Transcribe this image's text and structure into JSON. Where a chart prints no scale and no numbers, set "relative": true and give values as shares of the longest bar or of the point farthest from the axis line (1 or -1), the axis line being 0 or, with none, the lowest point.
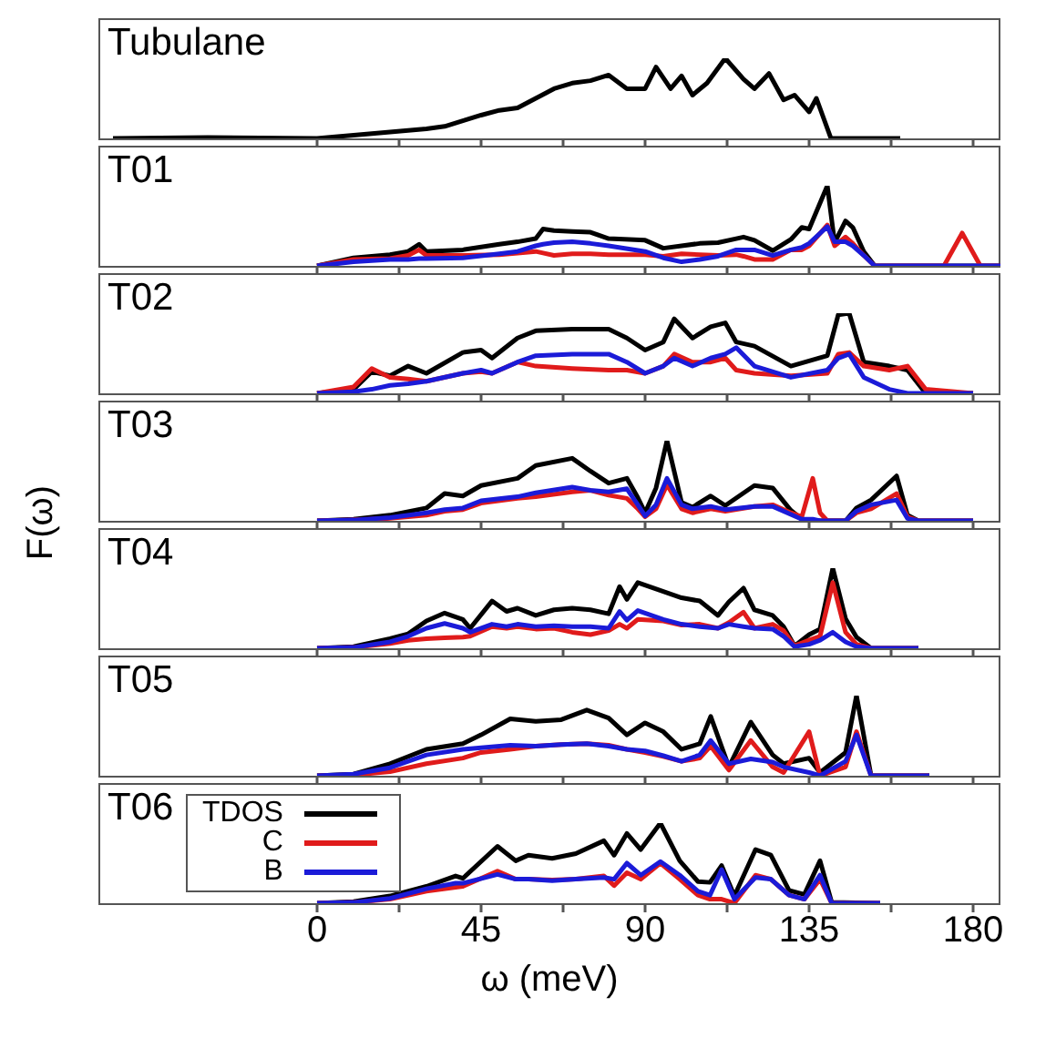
{
  "chart_data": [
    {
      "type": "line",
      "title": "Tubulane",
      "relative": true,
      "tick_labels": false,
      "xlim": [
        -60,
        187.5
      ],
      "xticks": [
        0,
        {
          "value": 22.5,
          "label": null
        },
        45,
        {
          "value": 67.5,
          "label": null
        },
        90,
        {
          "value": 112.5,
          "label": null
        },
        135,
        {
          "value": 157.5,
          "label": null
        },
        180
      ],
      "x": [
        -56,
        -30,
        0,
        10,
        20,
        30,
        35,
        40,
        45,
        50,
        55,
        60,
        65,
        70,
        75,
        80,
        85,
        90,
        93,
        97,
        100,
        103,
        107,
        112,
        117,
        120,
        124,
        128,
        131,
        135,
        137,
        141,
        160
      ],
      "series": [
        {
          "color": "#000000",
          "values": [
            0,
            0.01,
            0,
            0.04,
            0.08,
            0.12,
            0.15,
            0.22,
            0.29,
            0.35,
            0.38,
            0.5,
            0.62,
            0.69,
            0.72,
            0.79,
            0.62,
            0.62,
            0.89,
            0.62,
            0.78,
            0.54,
            0.69,
            1,
            0.74,
            0.62,
            0.81,
            0.48,
            0.54,
            0.33,
            0.5,
            0,
            0
          ]
        }
      ]
    },
    {
      "type": "line",
      "title": "T01",
      "relative": true,
      "tick_labels": false,
      "xlim": [
        -60,
        187.5
      ],
      "xticks": [
        0,
        {
          "value": 22.5,
          "label": null
        },
        45,
        {
          "value": 67.5,
          "label": null
        },
        90,
        {
          "value": 112.5,
          "label": null
        },
        135,
        {
          "value": 157.5,
          "label": null
        },
        180
      ],
      "x": [
        0,
        10,
        20,
        25,
        28,
        30,
        40,
        50,
        55,
        60,
        62,
        65,
        70,
        75,
        80,
        90,
        95,
        100,
        105,
        110,
        115,
        117,
        120,
        125,
        130,
        133,
        135,
        140,
        142,
        145,
        147,
        150,
        153,
        160,
        172,
        177,
        182,
        187.5
      ],
      "series": [
        {
          "color": "#000000",
          "values": [
            0,
            0.1,
            0.14,
            0.18,
            0.27,
            0.18,
            0.2,
            0.27,
            0.3,
            0.34,
            0.46,
            0.44,
            0.43,
            0.42,
            0.34,
            0.32,
            0.22,
            0.25,
            0.28,
            0.29,
            0.34,
            0.36,
            0.32,
            0.19,
            0.33,
            0.48,
            0.46,
            1,
            0.29,
            0.56,
            0.48,
            0.18,
            0,
            0,
            0,
            0,
            0,
            0
          ]
        },
        {
          "color": "#e01b1b",
          "values": [
            0,
            0.08,
            0.09,
            0.13,
            0.2,
            0.13,
            0.13,
            0.14,
            0.16,
            0.18,
            0.16,
            0.13,
            0.15,
            0.15,
            0.14,
            0.14,
            0.12,
            0.15,
            0.14,
            0.13,
            0.14,
            0.12,
            0.08,
            0.08,
            0.2,
            0.2,
            0.25,
            0.51,
            0.25,
            0.36,
            0.28,
            0.13,
            0,
            0,
            0,
            0.41,
            0,
            0
          ]
        },
        {
          "color": "#1b1bd8",
          "values": [
            0,
            0.05,
            0.08,
            0.08,
            0.09,
            0.09,
            0.1,
            0.15,
            0.18,
            0.25,
            0.27,
            0.29,
            0.3,
            0.28,
            0.25,
            0.18,
            0.1,
            0.05,
            0.08,
            0.12,
            0.2,
            0.2,
            0.2,
            0.13,
            0.2,
            0.23,
            0.28,
            0.49,
            0.3,
            0.3,
            0.25,
            0.13,
            0,
            0,
            0,
            0,
            0,
            0
          ]
        }
      ]
    },
    {
      "type": "line",
      "title": "T02",
      "relative": true,
      "tick_labels": false,
      "xlim": [
        -60,
        187.5
      ],
      "xticks": [
        0,
        {
          "value": 22.5,
          "label": null
        },
        45,
        {
          "value": 67.5,
          "label": null
        },
        90,
        {
          "value": 112.5,
          "label": null
        },
        135,
        {
          "value": 157.5,
          "label": null
        },
        180
      ],
      "x": [
        0,
        10,
        15,
        20,
        25,
        30,
        40,
        45,
        48,
        55,
        60,
        70,
        80,
        85,
        90,
        95,
        98,
        103,
        108,
        112,
        115,
        120,
        130,
        140,
        143,
        146,
        150,
        157,
        162,
        167,
        180
      ],
      "series": [
        {
          "color": "#000000",
          "values": [
            0,
            0.05,
            0.27,
            0.22,
            0.34,
            0.25,
            0.51,
            0.54,
            0.44,
            0.69,
            0.78,
            0.8,
            0.8,
            0.69,
            0.54,
            0.64,
            0.93,
            0.69,
            0.83,
            0.88,
            0.64,
            0.59,
            0.34,
            0.47,
            0.98,
            1,
            0.39,
            0.34,
            0.29,
            0,
            0
          ]
        },
        {
          "color": "#e01b1b",
          "values": [
            0,
            0.08,
            0.31,
            0.2,
            0.18,
            0.15,
            0.25,
            0.27,
            0.25,
            0.39,
            0.34,
            0.31,
            0.29,
            0.29,
            0.25,
            0.34,
            0.49,
            0.39,
            0.39,
            0.44,
            0.29,
            0.25,
            0.22,
            0.25,
            0.49,
            0.51,
            0.34,
            0.29,
            0.34,
            0.05,
            0
          ]
        },
        {
          "color": "#1b1bd8",
          "values": [
            0,
            0.02,
            0.05,
            0.1,
            0.12,
            0.15,
            0.25,
            0.29,
            0.25,
            0.39,
            0.47,
            0.49,
            0.49,
            0.39,
            0.25,
            0.34,
            0.44,
            0.34,
            0.44,
            0.49,
            0.57,
            0.34,
            0.2,
            0.29,
            0.44,
            0.49,
            0.2,
            0.05,
            0,
            0,
            0
          ]
        }
      ]
    },
    {
      "type": "line",
      "title": "T03",
      "ylabel": "F(ω)",
      "relative": true,
      "tick_labels": false,
      "xlim": [
        -60,
        187.5
      ],
      "xticks": [
        0,
        {
          "value": 22.5,
          "label": null
        },
        45,
        {
          "value": 67.5,
          "label": null
        },
        90,
        {
          "value": 112.5,
          "label": null
        },
        135,
        {
          "value": 157.5,
          "label": null
        },
        180
      ],
      "x": [
        0,
        10,
        20,
        30,
        35,
        40,
        45,
        55,
        60,
        70,
        75,
        80,
        85,
        88,
        90,
        93,
        96,
        100,
        103,
        108,
        112,
        120,
        125,
        130,
        133,
        136,
        138,
        140,
        145,
        148,
        152,
        159,
        162,
        165,
        180
      ],
      "series": [
        {
          "color": "#000000",
          "values": [
            0,
            0.02,
            0.07,
            0.16,
            0.34,
            0.31,
            0.44,
            0.53,
            0.69,
            0.78,
            0.62,
            0.47,
            0.53,
            0.29,
            0.1,
            0.41,
            1,
            0.23,
            0.17,
            0.31,
            0.19,
            0.44,
            0.41,
            0.13,
            0.02,
            0,
            0,
            0,
            0,
            0.16,
            0.26,
            0.56,
            0.07,
            0,
            0
          ]
        },
        {
          "color": "#e01b1b",
          "values": [
            0,
            0.01,
            0.03,
            0.07,
            0.12,
            0.14,
            0.22,
            0.28,
            0.3,
            0.36,
            0.38,
            0.32,
            0.28,
            0.15,
            0.05,
            0.15,
            0.45,
            0.15,
            0.1,
            0.15,
            0.12,
            0.18,
            0.2,
            0.1,
            0.05,
            0.53,
            0.1,
            0,
            0,
            0.1,
            0.15,
            0.34,
            0.05,
            0,
            0
          ]
        },
        {
          "color": "#1b1bd8",
          "values": [
            0,
            0.01,
            0.04,
            0.1,
            0.14,
            0.16,
            0.25,
            0.3,
            0.35,
            0.42,
            0.38,
            0.36,
            0.4,
            0.2,
            0.06,
            0.2,
            0.53,
            0.2,
            0.15,
            0.18,
            0.14,
            0.18,
            0.18,
            0.08,
            0.02,
            0.02,
            0,
            0,
            0,
            0.12,
            0.2,
            0.26,
            0.03,
            0,
            0
          ]
        }
      ]
    },
    {
      "type": "line",
      "title": "T04",
      "relative": true,
      "tick_labels": false,
      "xlim": [
        -60,
        187.5
      ],
      "xticks": [
        0,
        {
          "value": 22.5,
          "label": null
        },
        45,
        {
          "value": 67.5,
          "label": null
        },
        90,
        {
          "value": 112.5,
          "label": null
        },
        135,
        {
          "value": 157.5,
          "label": null
        },
        180
      ],
      "x": [
        0,
        10,
        20,
        25,
        30,
        35,
        40,
        42,
        48,
        52,
        55,
        60,
        65,
        70,
        75,
        80,
        83,
        85,
        88,
        95,
        100,
        105,
        110,
        113,
        117,
        120,
        125,
        128,
        131,
        135,
        138,
        141.5,
        145,
        148,
        152,
        165
      ],
      "series": [
        {
          "color": "#000000",
          "values": [
            0,
            0.02,
            0.12,
            0.18,
            0.34,
            0.44,
            0.36,
            0.25,
            0.59,
            0.46,
            0.5,
            0.41,
            0.48,
            0.5,
            0.48,
            0.43,
            0.77,
            0.61,
            0.82,
            0.71,
            0.63,
            0.59,
            0.41,
            0.58,
            0.75,
            0.48,
            0.41,
            0.27,
            0.03,
            0.17,
            0.24,
            1,
            0.37,
            0.14,
            0,
            0
          ]
        },
        {
          "color": "#e01b1b",
          "values": [
            0,
            0.01,
            0.06,
            0.1,
            0.12,
            0.13,
            0.14,
            0.15,
            0.27,
            0.25,
            0.27,
            0.24,
            0.25,
            0.2,
            0.17,
            0.22,
            0.3,
            0.25,
            0.36,
            0.34,
            0.29,
            0.3,
            0.25,
            0.32,
            0.45,
            0.25,
            0.3,
            0.22,
            0.03,
            0.1,
            0.15,
            0.82,
            0.2,
            0.05,
            0,
            0
          ]
        },
        {
          "color": "#1b1bd8",
          "values": [
            0,
            0.01,
            0.08,
            0.15,
            0.25,
            0.31,
            0.25,
            0.2,
            0.3,
            0.27,
            0.3,
            0.27,
            0.28,
            0.27,
            0.27,
            0.25,
            0.46,
            0.35,
            0.47,
            0.36,
            0.3,
            0.27,
            0.25,
            0.3,
            0.27,
            0.25,
            0.24,
            0.15,
            0.02,
            0.05,
            0.1,
            0.2,
            0.08,
            0.02,
            0,
            0
          ]
        }
      ]
    },
    {
      "type": "line",
      "title": "T05",
      "relative": true,
      "tick_labels": false,
      "xlim": [
        -60,
        187.5
      ],
      "xticks": [
        0,
        {
          "value": 22.5,
          "label": null
        },
        45,
        {
          "value": 67.5,
          "label": null
        },
        90,
        {
          "value": 112.5,
          "label": null
        },
        135,
        {
          "value": 157.5,
          "label": null
        },
        180
      ],
      "x": [
        0,
        10,
        20,
        30,
        40,
        45,
        53,
        60,
        67,
        74,
        80,
        85,
        90,
        95,
        100,
        105,
        108,
        113,
        119,
        125,
        128,
        135,
        138,
        145,
        148,
        152,
        168
      ],
      "series": [
        {
          "color": "#000000",
          "values": [
            0,
            0.02,
            0.15,
            0.33,
            0.4,
            0.51,
            0.71,
            0.68,
            0.7,
            0.82,
            0.72,
            0.51,
            0.66,
            0.55,
            0.33,
            0.4,
            0.74,
            0.11,
            0.67,
            0.26,
            0.15,
            0.22,
            0.04,
            0.29,
            1,
            0,
            0
          ]
        },
        {
          "color": "#e01b1b",
          "values": [
            0,
            0.01,
            0.05,
            0.15,
            0.22,
            0.29,
            0.33,
            0.37,
            0.39,
            0.4,
            0.38,
            0.33,
            0.29,
            0.24,
            0.18,
            0.22,
            0.37,
            0.07,
            0.44,
            0.11,
            0.04,
            0.55,
            0,
            0.11,
            0.55,
            0,
            0
          ]
        },
        {
          "color": "#1b1bd8",
          "values": [
            0,
            0.02,
            0.1,
            0.26,
            0.33,
            0.35,
            0.38,
            0.37,
            0.39,
            0.4,
            0.37,
            0.33,
            0.31,
            0.25,
            0.18,
            0.26,
            0.44,
            0.15,
            0.21,
            0.17,
            0.11,
            0.04,
            0,
            0.18,
            0.51,
            0,
            0
          ]
        }
      ]
    },
    {
      "type": "line",
      "title": "T06",
      "xlabel": "ω (meV)",
      "relative": true,
      "tick_labels": "x",
      "legend": "top left",
      "xlim": [
        -60,
        187.5
      ],
      "xticks": [
        0,
        {
          "value": 22.5,
          "label": null
        },
        45,
        {
          "value": 67.5,
          "label": null
        },
        90,
        {
          "value": 112.5,
          "label": null
        },
        135,
        {
          "value": 157.5,
          "label": null
        },
        180
      ],
      "x": [
        0,
        10,
        20,
        30,
        38,
        40,
        49.5,
        54.5,
        58,
        64.5,
        71,
        78.7,
        81.5,
        85,
        88.8,
        94.2,
        99.5,
        104.5,
        107.8,
        111,
        114.5,
        120.3,
        124.5,
        129.5,
        133.7,
        138,
        141.2,
        154.5
      ],
      "series": [
        {
          "name": "TDOS",
          "color": "#000000",
          "values": [
            0,
            0.02,
            0.09,
            0.21,
            0.34,
            0.31,
            0.71,
            0.53,
            0.6,
            0.56,
            0.62,
            0.78,
            0.6,
            0.87,
            0.67,
            1,
            0.53,
            0.27,
            0.26,
            0.47,
            0.09,
            0.67,
            0.6,
            0.16,
            0.11,
            0.53,
            0.01,
            0
          ]
        },
        {
          "name": "C",
          "color": "#e01b1b",
          "values": [
            0,
            0.01,
            0.05,
            0.15,
            0.2,
            0.21,
            0.4,
            0.3,
            0.3,
            0.29,
            0.3,
            0.34,
            0.22,
            0.38,
            0.3,
            0.5,
            0.3,
            0.1,
            0.05,
            0.05,
            0,
            0.35,
            0.3,
            0.1,
            0.05,
            0.3,
            0,
            0
          ]
        },
        {
          "name": "B",
          "color": "#1b1bd8",
          "values": [
            0,
            0.01,
            0.06,
            0.18,
            0.25,
            0.25,
            0.36,
            0.3,
            0.3,
            0.28,
            0.3,
            0.32,
            0.3,
            0.5,
            0.35,
            0.52,
            0.35,
            0.15,
            0.1,
            0.42,
            0.05,
            0.32,
            0.3,
            0.1,
            0.05,
            0.35,
            0,
            0
          ]
        }
      ]
    }
  ]
}
